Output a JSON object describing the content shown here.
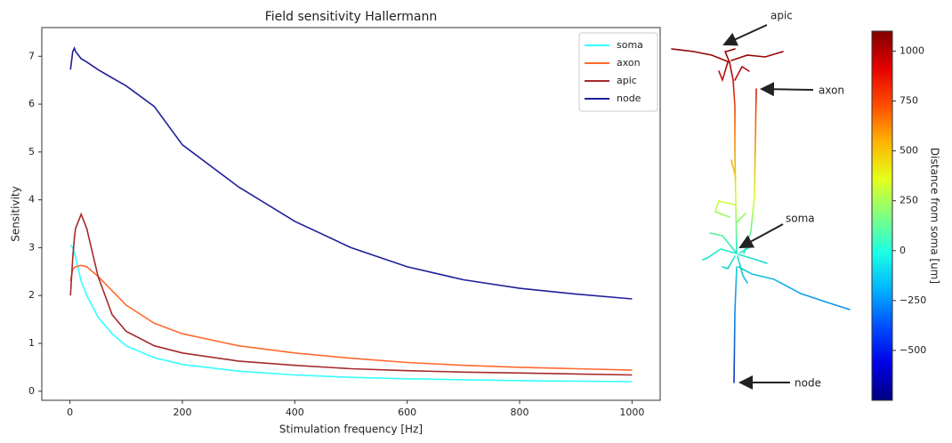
{
  "chart_data": [
    {
      "type": "line",
      "title": "Field sensitivity Hallermann",
      "x_label": "Stimulation frequency [Hz]",
      "y_label": "Sensitivity",
      "x": [
        1,
        5,
        8,
        10,
        20,
        30,
        50,
        75,
        100,
        150,
        200,
        300,
        400,
        500,
        600,
        700,
        800,
        900,
        1000
      ],
      "series": [
        {
          "name": "soma",
          "color": "#33ffff",
          "values": [
            3.05,
            3.0,
            2.9,
            2.8,
            2.3,
            2.0,
            1.55,
            1.2,
            0.95,
            0.7,
            0.56,
            0.42,
            0.34,
            0.29,
            0.26,
            0.24,
            0.22,
            0.21,
            0.2
          ]
        },
        {
          "name": "axon",
          "color": "#ff6a2e",
          "values": [
            2.3,
            2.55,
            2.58,
            2.6,
            2.63,
            2.6,
            2.4,
            2.1,
            1.8,
            1.42,
            1.2,
            0.95,
            0.8,
            0.69,
            0.6,
            0.54,
            0.5,
            0.47,
            0.44
          ]
        },
        {
          "name": "apic",
          "color": "#a52a2a",
          "values": [
            2.0,
            2.8,
            3.2,
            3.4,
            3.7,
            3.4,
            2.4,
            1.6,
            1.25,
            0.95,
            0.8,
            0.63,
            0.54,
            0.47,
            0.43,
            0.4,
            0.38,
            0.36,
            0.34
          ]
        },
        {
          "name": "node",
          "color": "#1f1f9a",
          "values": [
            6.72,
            7.1,
            7.17,
            7.1,
            6.95,
            6.88,
            6.72,
            6.55,
            6.38,
            5.95,
            5.15,
            4.27,
            3.55,
            3.0,
            2.6,
            2.33,
            2.15,
            2.03,
            1.93
          ]
        }
      ],
      "xlim": [
        -50,
        1050
      ],
      "xticks": [
        0,
        200,
        400,
        600,
        800,
        1000
      ],
      "ylim": [
        -0.19,
        7.6
      ],
      "yticks": [
        0,
        1,
        2,
        3,
        4,
        5,
        6,
        7
      ],
      "legend": "upper right"
    },
    {
      "type": "colorbar",
      "colormap": "jet",
      "label": "Distance from soma [um]",
      "ylim": [
        -750,
        1100
      ],
      "yticks": [
        {
          "value": -500,
          "label": "−500"
        },
        {
          "value": -250,
          "label": "−250"
        },
        0,
        250,
        500,
        750,
        1000
      ]
    }
  ],
  "annotations": [
    "apic",
    "axon",
    "soma",
    "node"
  ]
}
